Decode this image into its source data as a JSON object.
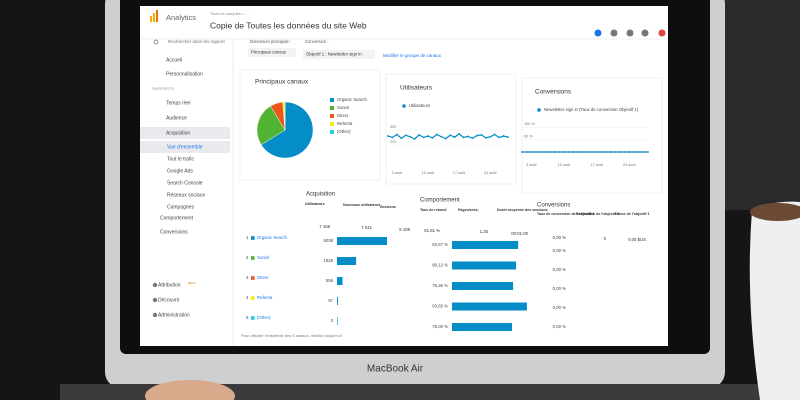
{
  "laptop": {
    "brand": "MacBook Air"
  },
  "header": {
    "product": "Analytics",
    "breadcrumb": "Tous les comptes > ...",
    "title": "Copie de Toutes les données du site Web"
  },
  "sidebar": {
    "search": "Rechercher dans les rapport",
    "items_top": [
      "Accueil",
      "Personnalisation"
    ],
    "section": "RAPPORTS",
    "reports": [
      "Temps réel",
      "Audience",
      "Acquisition"
    ],
    "acquisition_sub": [
      "Vue d'ensemble",
      "Tout le trafic",
      "Google Ads",
      "Search Console",
      "Réseaux sociaux",
      "Campagnes"
    ],
    "reports_bottom": [
      "Comportement",
      "Conversions"
    ],
    "footer": [
      "Attribution",
      "Découvrir",
      "Administration"
    ],
    "beta": "BETA"
  },
  "controls": {
    "dimension_label": "Dimension principale :",
    "dimension_value": "Principaux canaux",
    "conversion_label": "Conversion :",
    "conversion_value": "Objectif 1 : Newsletter sign in",
    "edit_link": "Modifier le groupe de canaux"
  },
  "chart_data": [
    {
      "type": "pie",
      "title": "Principaux canaux",
      "categories": [
        "Organic Search",
        "Social",
        "Direct",
        "Referral",
        "(Other)"
      ],
      "values": [
        5038,
        1925,
        556,
        97,
        3
      ],
      "colors": [
        "#058dc7",
        "#50b432",
        "#ed561b",
        "#edef00",
        "#24cbe5"
      ]
    },
    {
      "type": "line",
      "title": "Utilisateurs",
      "categories": [
        null,
        null,
        "3 août",
        null,
        null,
        null,
        null,
        null,
        null,
        "10 août",
        null,
        null,
        null,
        null,
        null,
        null,
        "17 août",
        null,
        null,
        null,
        null,
        null,
        null,
        "24 août",
        null,
        null,
        null,
        null
      ],
      "series": [
        {
          "name": "Utilisateurs",
          "color": "#058dc7",
          "values": [
            320,
            300,
            340,
            290,
            330,
            310,
            280,
            335,
            300,
            320,
            295,
            340,
            310,
            285,
            330,
            305,
            350,
            300,
            315,
            290,
            325,
            335,
            295,
            310,
            340,
            300,
            320,
            305
          ]
        }
      ],
      "ylim": [
        0,
        500
      ],
      "yticks": [
        200,
        400
      ]
    },
    {
      "type": "line",
      "title": "Conversions",
      "categories": [
        null,
        null,
        "3 août",
        null,
        null,
        null,
        null,
        null,
        null,
        "10 août",
        null,
        null,
        null,
        null,
        null,
        null,
        "17 août",
        null,
        null,
        null,
        null,
        null,
        null,
        "24 août",
        null,
        null,
        null,
        null
      ],
      "series": [
        {
          "name": "Newsletter sign in (Taux de conversion Objectif 1)",
          "color": "#058dc7",
          "values": [
            0,
            0,
            0,
            0,
            0,
            0,
            0,
            0,
            0,
            0,
            0,
            0,
            0,
            0,
            0,
            0,
            0,
            0,
            0,
            0,
            0,
            0,
            0,
            0,
            0,
            0,
            0,
            0
          ]
        }
      ],
      "ylim": [
        0,
        125
      ],
      "yticks": [
        {
          "value": 50,
          "label": "50 %"
        },
        {
          "value": 100,
          "label": "100 %"
        }
      ]
    }
  ],
  "table": {
    "groups": [
      "Acquisition",
      "Comportement",
      "Conversions"
    ],
    "headers": [
      "Utilisateurs",
      "Nouveaux utilisateurs",
      "Sessions",
      "Taux de rebond",
      "Pages/sess.",
      "Durée moyenne des sessions",
      "Taux de conversion de l'objectif 1",
      "Réalisation de l'objectif 1",
      "Valeur de l'objectif 1"
    ],
    "totals": [
      "7 168",
      "7 041",
      "8 109",
      "81,81 %",
      "1,35",
      "00:01:00",
      "0,00 %",
      "0",
      "0,00 $US"
    ],
    "rows": [
      {
        "index": "1",
        "channel": "Organic Search",
        "users": 5038,
        "bounce": 82.67,
        "bounce_label": "82,67 %",
        "conversion": "0,00 %"
      },
      {
        "index": "2",
        "channel": "Social",
        "users": 1925,
        "bounce": 80.12,
        "bounce_label": "80,12 %",
        "conversion": "0,00 %"
      },
      {
        "index": "3",
        "channel": "Direct",
        "users": 556,
        "bounce": 76.36,
        "bounce_label": "76,36 %",
        "conversion": "0,00 %"
      },
      {
        "index": "4",
        "channel": "Referral",
        "users": 97,
        "bounce": 93.65,
        "bounce_label": "93,65 %",
        "conversion": "0,00 %"
      },
      {
        "index": "5",
        "channel": "(Other)",
        "users": 3,
        "bounce": 75.0,
        "bounce_label": "75,00 %",
        "conversion": "0,00 %"
      }
    ],
    "note": "Pour afficher l'ensemble des 5 canaux, veuillez cliquer ici"
  }
}
